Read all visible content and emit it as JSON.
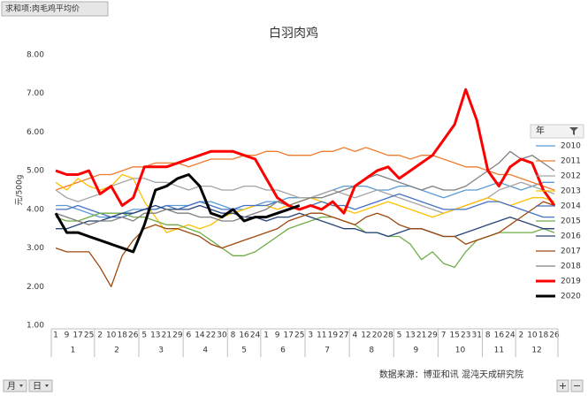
{
  "chart_data": {
    "type": "line",
    "title": "白羽肉鸡",
    "pivot_field": "求和项:肉毛鸡平均价",
    "y_label": "元/500g",
    "legend_title": "年",
    "source": "数据来源：博亚和讯 混沌天成研究院",
    "axis_fields": [
      "月",
      "日"
    ],
    "categories": [
      "1",
      "9",
      "17",
      "25",
      "2",
      "10",
      "18",
      "26",
      "5",
      "13",
      "21",
      "29",
      "6",
      "14",
      "22",
      "30",
      "8",
      "16",
      "24",
      "1",
      "9",
      "17",
      "25",
      "3",
      "11",
      "19",
      "27",
      "4",
      "12",
      "20",
      "28",
      "5",
      "13",
      "21",
      "29",
      "7",
      "15",
      "23",
      "31",
      "8",
      "16",
      "24",
      "2",
      "10",
      "18",
      "26"
    ],
    "category_months": [
      "1",
      "1",
      "1",
      "1",
      "2",
      "2",
      "2",
      "2",
      "3",
      "3",
      "3",
      "3",
      "4",
      "4",
      "4",
      "4",
      "5",
      "5",
      "5",
      "6",
      "6",
      "6",
      "6",
      "7",
      "7",
      "7",
      "7",
      "8",
      "8",
      "8",
      "8",
      "9",
      "9",
      "9",
      "9",
      "10",
      "10",
      "10",
      "10",
      "11",
      "11",
      "11",
      "12",
      "12",
      "12",
      "12"
    ],
    "ylim": [
      1,
      8
    ],
    "yticks": [
      {
        "value": 1,
        "label": "1.00"
      },
      {
        "value": 2,
        "label": "2.00"
      },
      {
        "value": 3,
        "label": "3.00"
      },
      {
        "value": 4,
        "label": "4.00"
      },
      {
        "value": 5,
        "label": "5.00"
      },
      {
        "value": 6,
        "label": "6.00"
      },
      {
        "value": 7,
        "label": "7.00"
      },
      {
        "value": 8,
        "label": "8.00"
      }
    ],
    "legend_position": "right",
    "series": [
      {
        "name": "2010",
        "color": "#5b9bd5",
        "linewidth": 1.3,
        "values": [
          4.1,
          4.1,
          4.0,
          3.9,
          3.8,
          3.8,
          3.9,
          4.0,
          4.0,
          4.0,
          4.1,
          4.1,
          4.1,
          4.2,
          4.2,
          4.1,
          4.0,
          4.0,
          4.1,
          4.2,
          4.2,
          4.3,
          4.3,
          4.3,
          4.4,
          4.5,
          4.6,
          4.6,
          4.6,
          4.5,
          4.5,
          4.6,
          4.6,
          4.5,
          4.4,
          4.3,
          4.4,
          4.5,
          4.5,
          4.6,
          4.7,
          4.6,
          4.5,
          4.6,
          4.7,
          4.7
        ]
      },
      {
        "name": "2011",
        "color": "#ed7d31",
        "linewidth": 1.3,
        "values": [
          4.5,
          4.6,
          4.7,
          4.8,
          4.9,
          4.9,
          5.0,
          5.1,
          5.1,
          5.2,
          5.2,
          5.2,
          5.1,
          5.2,
          5.3,
          5.3,
          5.3,
          5.4,
          5.4,
          5.5,
          5.5,
          5.4,
          5.4,
          5.4,
          5.5,
          5.5,
          5.6,
          5.5,
          5.6,
          5.5,
          5.4,
          5.4,
          5.3,
          5.4,
          5.4,
          5.3,
          5.2,
          5.1,
          5.1,
          5.0,
          4.9,
          4.9,
          4.8,
          4.7,
          4.6,
          4.5
        ]
      },
      {
        "name": "2012",
        "color": "#a5a5a5",
        "linewidth": 1.3,
        "values": [
          4.5,
          4.3,
          4.2,
          4.3,
          4.4,
          4.6,
          4.7,
          4.8,
          4.8,
          4.7,
          4.7,
          4.6,
          4.5,
          4.6,
          4.6,
          4.5,
          4.5,
          4.6,
          4.6,
          4.5,
          4.5,
          4.4,
          4.3,
          4.3,
          4.4,
          4.5,
          4.4,
          4.3,
          4.4,
          4.5,
          4.4,
          4.3,
          4.2,
          4.1,
          4.0,
          3.9,
          4.0,
          4.1,
          4.2,
          4.3,
          4.5,
          4.6,
          4.7,
          4.6,
          4.5,
          4.4
        ]
      },
      {
        "name": "2013",
        "color": "#ffc000",
        "linewidth": 1.3,
        "values": [
          4.7,
          4.5,
          4.8,
          4.6,
          4.5,
          4.6,
          4.9,
          4.8,
          4.2,
          3.8,
          3.4,
          3.5,
          3.6,
          3.5,
          3.6,
          3.8,
          3.9,
          4.0,
          4.1,
          4.1,
          4.0,
          4.1,
          4.2,
          4.3,
          4.2,
          4.1,
          4.0,
          3.9,
          4.0,
          4.1,
          4.2,
          4.1,
          4.0,
          3.9,
          3.8,
          3.9,
          4.0,
          4.1,
          4.2,
          4.3,
          4.2,
          4.1,
          4.2,
          4.3,
          4.3,
          4.2
        ]
      },
      {
        "name": "2014",
        "color": "#4472c4",
        "linewidth": 1.3,
        "values": [
          4.0,
          4.0,
          4.1,
          4.0,
          3.9,
          3.8,
          3.8,
          3.9,
          4.0,
          4.0,
          4.1,
          4.0,
          4.1,
          4.2,
          4.1,
          4.0,
          4.0,
          4.1,
          4.1,
          4.1,
          4.2,
          4.1,
          4.0,
          4.1,
          4.2,
          4.1,
          4.1,
          4.0,
          4.1,
          4.2,
          4.3,
          4.4,
          4.3,
          4.2,
          4.1,
          4.0,
          4.0,
          4.0,
          4.1,
          4.2,
          4.2,
          4.1,
          4.0,
          3.9,
          3.8,
          3.8
        ]
      },
      {
        "name": "2015",
        "color": "#70ad47",
        "linewidth": 1.3,
        "values": [
          3.8,
          3.7,
          3.7,
          3.8,
          3.9,
          3.9,
          3.9,
          3.8,
          3.8,
          3.7,
          3.6,
          3.6,
          3.5,
          3.4,
          3.2,
          3.0,
          2.8,
          2.8,
          2.9,
          3.1,
          3.3,
          3.5,
          3.6,
          3.7,
          3.8,
          3.8,
          3.7,
          3.6,
          3.4,
          3.4,
          3.3,
          3.3,
          3.1,
          2.7,
          2.9,
          2.6,
          2.5,
          2.9,
          3.2,
          3.3,
          3.4,
          3.4,
          3.4,
          3.4,
          3.5,
          3.4
        ]
      },
      {
        "name": "2016",
        "color": "#264478",
        "linewidth": 1.3,
        "values": [
          3.5,
          3.5,
          3.6,
          3.7,
          3.7,
          3.8,
          3.9,
          3.9,
          4.0,
          4.1,
          4.0,
          4.0,
          4.0,
          4.1,
          4.0,
          3.9,
          3.9,
          3.8,
          3.8,
          3.7,
          3.8,
          3.8,
          3.9,
          3.8,
          3.7,
          3.6,
          3.5,
          3.5,
          3.4,
          3.4,
          3.3,
          3.4,
          3.5,
          3.5,
          3.4,
          3.3,
          3.3,
          3.4,
          3.5,
          3.6,
          3.7,
          3.8,
          3.7,
          3.6,
          3.5,
          3.5
        ]
      },
      {
        "name": "2017",
        "color": "#9e480e",
        "linewidth": 1.3,
        "values": [
          3.0,
          2.9,
          2.9,
          2.9,
          2.5,
          2.0,
          2.8,
          3.2,
          3.5,
          3.6,
          3.5,
          3.5,
          3.4,
          3.3,
          3.1,
          3.0,
          3.1,
          3.2,
          3.3,
          3.4,
          3.5,
          3.7,
          3.8,
          3.9,
          3.9,
          3.8,
          3.7,
          3.6,
          3.8,
          3.9,
          3.8,
          3.6,
          3.5,
          3.5,
          3.4,
          3.3,
          3.3,
          3.1,
          3.2,
          3.3,
          3.4,
          3.6,
          3.8,
          4.0,
          4.2,
          4.1
        ]
      },
      {
        "name": "2018",
        "color": "#7f7f7f",
        "linewidth": 1.3,
        "values": [
          3.9,
          3.8,
          3.7,
          3.6,
          3.7,
          3.7,
          3.8,
          3.7,
          3.9,
          3.9,
          4.0,
          3.9,
          3.9,
          3.8,
          3.8,
          3.7,
          3.7,
          3.8,
          3.9,
          4.0,
          4.2,
          4.1,
          4.2,
          4.3,
          4.3,
          4.4,
          4.5,
          4.6,
          4.8,
          4.9,
          4.8,
          4.7,
          4.6,
          4.5,
          4.6,
          4.5,
          4.5,
          4.6,
          4.8,
          5.0,
          5.2,
          5.5,
          5.3,
          5.4,
          5.2,
          5.0
        ]
      },
      {
        "name": "2019",
        "color": "#ff0000",
        "linewidth": 3,
        "values": [
          5.0,
          4.9,
          4.9,
          5.0,
          4.4,
          4.6,
          4.1,
          4.3,
          5.1,
          5.1,
          5.1,
          5.2,
          5.3,
          5.4,
          5.5,
          5.5,
          5.5,
          5.4,
          5.3,
          4.8,
          4.3,
          4.1,
          4.0,
          4.1,
          4.0,
          4.2,
          3.9,
          4.6,
          4.8,
          5.0,
          5.1,
          4.8,
          5.0,
          5.2,
          5.4,
          5.8,
          6.2,
          7.1,
          6.3,
          5.0,
          4.6,
          5.1,
          5.3,
          5.2,
          4.5,
          4.1
        ]
      },
      {
        "name": "2020",
        "color": "#000000",
        "linewidth": 3,
        "values": [
          3.9,
          3.4,
          3.4,
          3.3,
          3.2,
          3.1,
          3.0,
          2.9,
          3.6,
          4.5,
          4.6,
          4.8,
          4.9,
          4.6,
          3.9,
          3.8,
          4.0,
          3.7,
          3.8,
          3.8,
          3.9,
          4.0,
          4.1,
          null,
          null,
          null,
          null,
          null,
          null,
          null,
          null,
          null,
          null,
          null,
          null,
          null,
          null,
          null,
          null,
          null,
          null,
          null,
          null,
          null,
          null,
          null
        ]
      }
    ]
  }
}
